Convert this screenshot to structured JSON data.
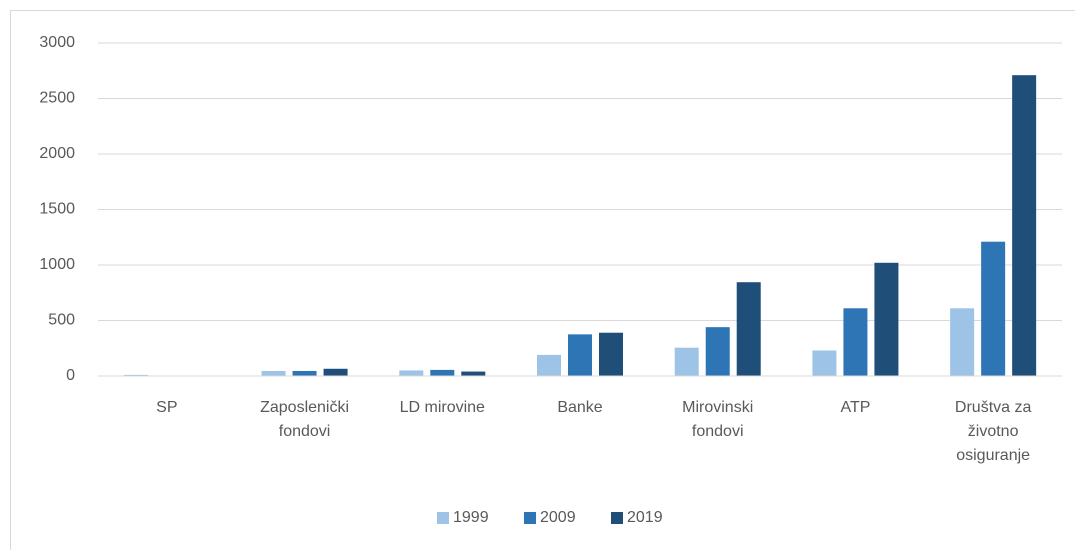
{
  "chart_data": {
    "type": "bar",
    "categories": [
      "SP",
      "Zaposlenički fondovi",
      "LD mirovine",
      "Banke",
      "Mirovinski fondovi",
      "ATP",
      "Društva za životno osiguranje"
    ],
    "series": [
      {
        "name": "1999",
        "color": "#9dc3e6",
        "values": [
          10,
          45,
          50,
          190,
          255,
          230,
          610
        ]
      },
      {
        "name": "2009",
        "color": "#2e75b6",
        "values": [
          3,
          45,
          55,
          375,
          440,
          610,
          1210
        ]
      },
      {
        "name": "2019",
        "color": "#1f4e79",
        "values": [
          3,
          65,
          40,
          390,
          845,
          1020,
          2710
        ]
      }
    ],
    "ylim": [
      0,
      3000
    ],
    "yticks": [
      0,
      500,
      1000,
      1500,
      2000,
      2500,
      3000
    ],
    "grid": true,
    "legend": "bottom"
  }
}
